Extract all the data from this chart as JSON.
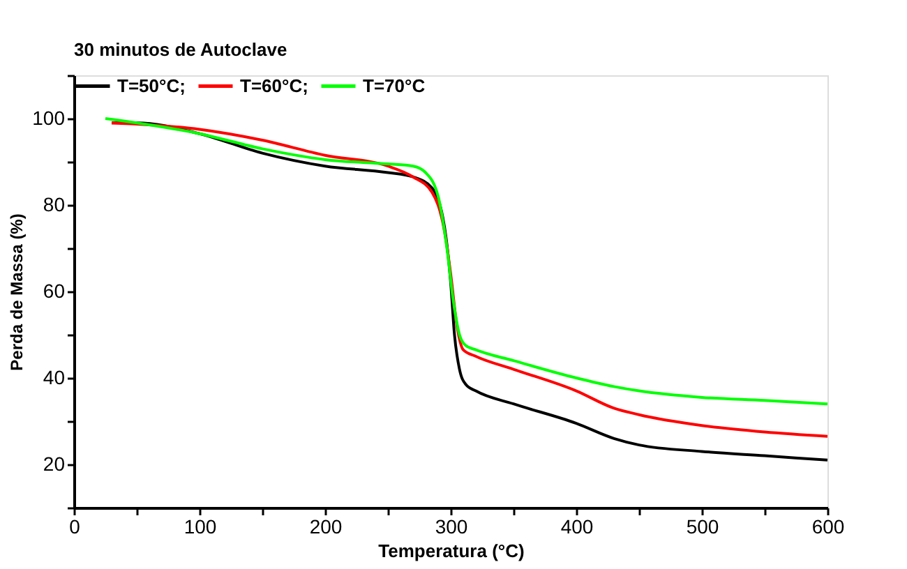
{
  "chart_data": {
    "type": "line",
    "legend_title": "30 minutos de Autoclave",
    "xlabel": "Temperatura (°C)",
    "ylabel": "Perda de Massa (%)",
    "xlim": [
      0,
      600
    ],
    "ylim": [
      10,
      110
    ],
    "xticks": [
      0,
      {
        "value": 50,
        "label": null
      },
      100,
      {
        "value": 150,
        "label": null
      },
      200,
      {
        "value": 250,
        "label": null
      },
      300,
      {
        "value": 350,
        "label": null
      },
      400,
      {
        "value": 450,
        "label": null
      },
      500,
      {
        "value": 550,
        "label": null
      },
      600
    ],
    "yticks": [
      {
        "value": 10,
        "label": null
      },
      20,
      {
        "value": 30,
        "label": null
      },
      40,
      {
        "value": 50,
        "label": null
      },
      60,
      {
        "value": 70,
        "label": null
      },
      80,
      {
        "value": 90,
        "label": null
      },
      100,
      {
        "value": 110,
        "label": null
      }
    ],
    "grid": false,
    "legend": "top left",
    "marker": "none",
    "line_style": "solid",
    "series": [
      {
        "name": "T=50°C;",
        "color": "#000000",
        "x": [
          30,
          50,
          100,
          150,
          200,
          250,
          270,
          285,
          295,
          300,
          303,
          307,
          312,
          320,
          350,
          400,
          430,
          450,
          500,
          550,
          600
        ],
        "values": [
          99,
          99,
          96.5,
          92,
          89,
          87.5,
          86.5,
          84,
          75,
          62,
          50,
          42,
          38.5,
          37,
          34,
          29.5,
          26,
          24.5,
          23,
          22,
          21
        ]
      },
      {
        "name": "T=60°C;",
        "color": "#ff0000",
        "x": [
          30,
          100,
          150,
          200,
          250,
          270,
          285,
          295,
          300,
          305,
          310,
          320,
          350,
          400,
          430,
          450,
          500,
          550,
          600
        ],
        "values": [
          99,
          97.5,
          95,
          91.5,
          89,
          86.5,
          83,
          74,
          64,
          52,
          46.5,
          45,
          42,
          37,
          33,
          31.5,
          29,
          27.5,
          26.5
        ]
      },
      {
        "name": "T=70°C",
        "color": "#00ff00",
        "x": [
          25,
          50,
          100,
          150,
          200,
          250,
          270,
          280,
          290,
          297,
          302,
          307,
          312,
          320,
          350,
          400,
          430,
          450,
          500,
          550,
          600
        ],
        "values": [
          100,
          99,
          96.5,
          93,
          90.5,
          89.5,
          89,
          87.5,
          82,
          70,
          58,
          50,
          47.5,
          46.5,
          44,
          40,
          38,
          37,
          35.5,
          34.8,
          34
        ]
      }
    ]
  }
}
